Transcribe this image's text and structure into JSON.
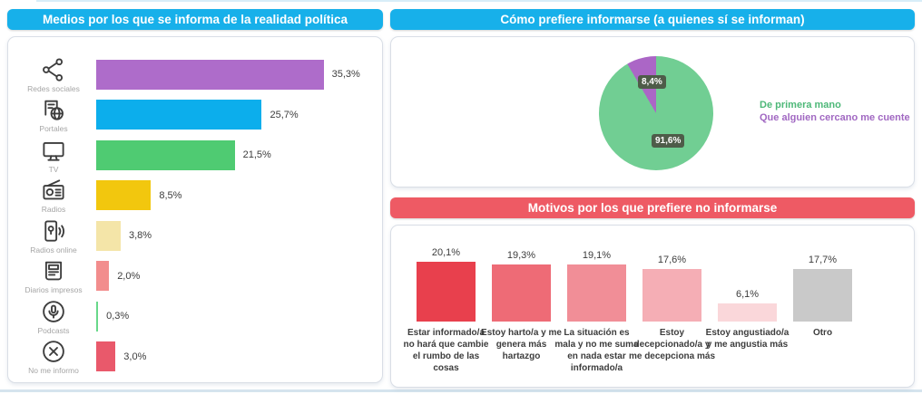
{
  "theme": {
    "blue_header": "#17b0ea",
    "red_header": "#ee5a64",
    "panel_border": "#d9dee6",
    "value_text": "#3c3c3c",
    "icon_label_text": "#a5a5a5",
    "top_strip": "#d8edf8",
    "bottom_strip": "#d5e4ee"
  },
  "chart_data": [
    {
      "id": "media",
      "type": "bar",
      "orientation": "horizontal",
      "title": "Medios por los que se informa de la realidad política",
      "categories": [
        "Redes sociales",
        "Portales",
        "TV",
        "Radios",
        "Radios online",
        "Diarios impresos",
        "Podcasts",
        "No me informo"
      ],
      "values": [
        35.3,
        25.7,
        21.5,
        8.5,
        3.8,
        2.0,
        0.3,
        3.0
      ],
      "value_labels": [
        "35,3%",
        "25,7%",
        "21,5%",
        "8,5%",
        "3,8%",
        "2,0%",
        "0,3%",
        "3,0%"
      ],
      "bar_colors": [
        "#ae6cca",
        "#0caeec",
        "#4fcb72",
        "#f2c70e",
        "#f4e5a8",
        "#f28d8d",
        "#68d88a",
        "#e9596b"
      ],
      "icons": [
        "social-network-icon",
        "news-portal-icon",
        "tv-icon",
        "radio-icon",
        "online-radio-icon",
        "newspaper-icon",
        "podcast-icon",
        "no-info-icon"
      ],
      "xlim": [
        0,
        40
      ],
      "grid": false,
      "legend": false
    },
    {
      "id": "preference",
      "type": "pie",
      "title": "Cómo prefiere informarse (a quienes sí se informan)",
      "slices": [
        {
          "label": "De primera mano",
          "value": 91.6,
          "display": "91,6%",
          "color": "#71ce93",
          "legend_color": "#4db878"
        },
        {
          "label": "Que alguien cercano me cuente",
          "value": 8.4,
          "display": "8,4%",
          "color": "#ab66c6",
          "legend_color": "#a168c2"
        }
      ],
      "label_badge_color": "#4e5c49",
      "legend_position": "right",
      "start_angle_deg": 0,
      "direction": "clockwise"
    },
    {
      "id": "reasons",
      "type": "bar",
      "orientation": "vertical",
      "title": "Motivos por los que prefiere no informarse",
      "categories": [
        "Estar informado/a no hará que cambie el rumbo de las cosas",
        "Estoy harto/a y me genera más hartazgo",
        "La situación es mala y no me suma en nada estar informado/a",
        "Estoy decepcionado/a y me decepciona más",
        "Estoy angustiado/a y me angustia más",
        "Otro"
      ],
      "values": [
        20.1,
        19.3,
        19.1,
        17.6,
        6.1,
        17.7
      ],
      "value_labels": [
        "20,1%",
        "19,3%",
        "19,1%",
        "17,6%",
        "6,1%",
        "17,7%"
      ],
      "bar_colors": [
        "#e8404d",
        "#ee6b76",
        "#f18e97",
        "#f5aeb5",
        "#fad7da",
        "#c9c9c9"
      ],
      "ylim": [
        0,
        22
      ],
      "grid": false,
      "legend": false
    }
  ]
}
